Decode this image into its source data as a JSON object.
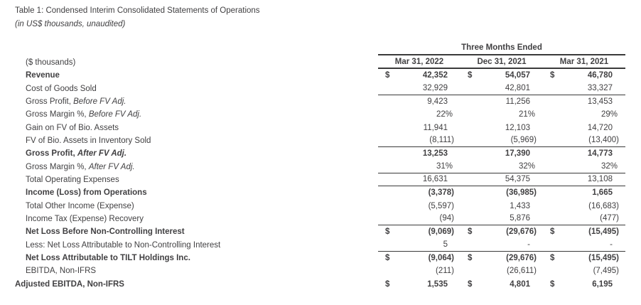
{
  "title": "Table 1: Condensed Interim Consolidated Statements of Operations",
  "subtitle": "(in US$ thousands, unaudited)",
  "colors": {
    "text": "#414042",
    "rule": "#3a3a3a"
  },
  "table": {
    "group_header": "Three Months Ended",
    "corner_label": "($ thousands)",
    "currency_symbol": "$",
    "columns": [
      "Mar 31, 2022",
      "Dec 31, 2021",
      "Mar 31, 2021"
    ],
    "rows": [
      {
        "label": "Revenue",
        "bold": true,
        "dollar": true,
        "values": [
          "42,352",
          "54,057",
          "46,780"
        ]
      },
      {
        "label": "Cost of Goods Sold",
        "values": [
          "32,929",
          "42,801",
          "33,327"
        ],
        "rule_below": true
      },
      {
        "label": "Gross Profit, ",
        "label_em": "Before FV Adj.",
        "values": [
          "9,423",
          "11,256",
          "13,453"
        ]
      },
      {
        "label": "Gross Margin %, ",
        "label_em": "Before FV Adj.",
        "values": [
          "22%",
          "21%",
          "29%"
        ]
      },
      {
        "label": "Gain on FV of Bio. Assets",
        "values": [
          "11,941",
          "12,103",
          "14,720"
        ]
      },
      {
        "label": "FV of Bio. Assets in Inventory Sold",
        "values": [
          "(8,111)",
          "(5,969)",
          "(13,400)"
        ],
        "rule_below": true
      },
      {
        "label": "Gross Profit, ",
        "label_em": "After FV Adj.",
        "bold": true,
        "values": [
          "13,253",
          "17,390",
          "14,773"
        ]
      },
      {
        "label": "Gross Margin %, ",
        "label_em": "After FV Adj.",
        "values": [
          "31%",
          "32%",
          "32%"
        ],
        "rule_below": true
      },
      {
        "label": "Total Operating Expenses",
        "values": [
          "16,631",
          "54,375",
          "13,108"
        ],
        "rule_below": true
      },
      {
        "label": "Income (Loss) from Operations",
        "bold": true,
        "values": [
          "(3,378)",
          "(36,985)",
          "1,665"
        ]
      },
      {
        "label": "Total Other Income (Expense)",
        "values": [
          "(5,597)",
          "1,433",
          "(16,683)"
        ]
      },
      {
        "label": "Income Tax (Expense) Recovery",
        "values": [
          "(94)",
          "5,876",
          "(477)"
        ],
        "rule_below": true
      },
      {
        "label": "Net Loss Before Non-Controlling Interest",
        "bold": true,
        "dollar": true,
        "values": [
          "(9,069)",
          "(29,676)",
          "(15,495)"
        ]
      },
      {
        "label": "Less: Net Loss Attributable to Non-Controlling Interest",
        "values": [
          "5",
          "-",
          "-"
        ],
        "rule_below": true
      },
      {
        "label": "Net Loss Attributable to TILT Holdings Inc.",
        "bold": true,
        "dollar": true,
        "values": [
          "(9,064)",
          "(29,676)",
          "(15,495)"
        ]
      },
      {
        "label": "EBITDA, Non-IFRS",
        "values": [
          "(211)",
          "(26,611)",
          "(7,495)"
        ]
      },
      {
        "label": "Adjusted EBITDA, Non-IFRS",
        "bold": true,
        "dollar": true,
        "outdent": true,
        "values": [
          "1,535",
          "4,801",
          "6,195"
        ]
      }
    ]
  }
}
